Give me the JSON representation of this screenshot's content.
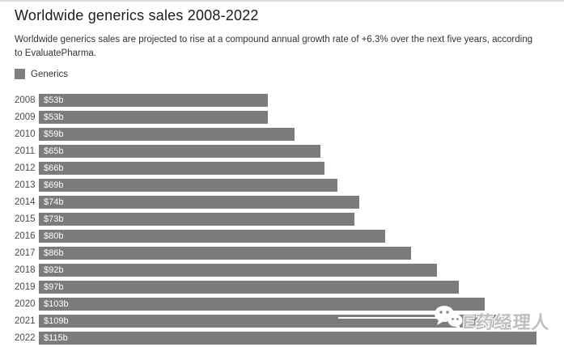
{
  "header": {
    "title": "Worldwide generics sales 2008-2022",
    "subtitle": "Worldwide generics sales are projected to rise at a compound annual growth rate of +6.3% over the next five years, according to EvaluatePharma."
  },
  "legend": {
    "label": "Generics",
    "swatch_color": "#7f7f7f"
  },
  "chart_data": {
    "type": "bar",
    "orientation": "horizontal",
    "title": "Worldwide generics sales 2008-2022",
    "categories": [
      "2008",
      "2009",
      "2010",
      "2011",
      "2012",
      "2013",
      "2014",
      "2015",
      "2016",
      "2017",
      "2018",
      "2019",
      "2020",
      "2021",
      "2022"
    ],
    "values": [
      53,
      53,
      59,
      65,
      66,
      69,
      74,
      73,
      80,
      86,
      92,
      97,
      103,
      109,
      115
    ],
    "value_labels": [
      "$53b",
      "$53b",
      "$59b",
      "$65b",
      "$66b",
      "$69b",
      "$74b",
      "$73b",
      "$80b",
      "$86b",
      "$92b",
      "$97b",
      "$103b",
      "$109b",
      "$115b"
    ],
    "xlim": [
      0,
      118
    ],
    "grid": false,
    "legend_entries": [
      "Generics"
    ],
    "legend_position": "top-left",
    "bar_color": "#7b7b7b",
    "value_label_color": "#ffffff",
    "category_label_color": "#4a4a4a"
  },
  "watermark": {
    "icon": "wechat-icon",
    "text": "E药经理人"
  }
}
